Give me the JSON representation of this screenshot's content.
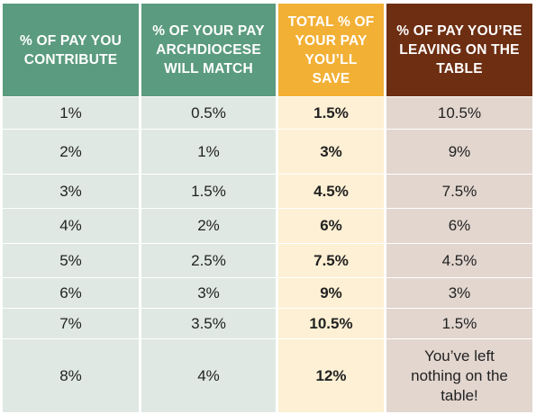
{
  "chart_data": {
    "type": "table",
    "columns": [
      "% OF PAY YOU\nCONTRIBUTE",
      "% OF YOUR PAY\nARCHDIOCESE\nWILL MATCH",
      "TOTAL % OF\nYOUR PAY\nYOU’LL SAVE",
      "% OF PAY YOU’RE\nLEAVING ON THE\nTABLE"
    ],
    "rows": [
      [
        "1%",
        "0.5%",
        "1.5%",
        "10.5%"
      ],
      [
        "2%",
        "1%",
        "3%",
        "9%"
      ],
      [
        "3%",
        "1.5%",
        "4.5%",
        "7.5%"
      ],
      [
        "4%",
        "2%",
        "6%",
        "6%"
      ],
      [
        "5%",
        "2.5%",
        "7.5%",
        "4.5%"
      ],
      [
        "6%",
        "3%",
        "9%",
        "3%"
      ],
      [
        "7%",
        "3.5%",
        "10.5%",
        "1.5%"
      ],
      [
        "8%",
        "4%",
        "12%",
        "You’ve left\nnothing on the\ntable!"
      ]
    ],
    "colors": {
      "header": [
        "#5b9b7f",
        "#5b9b7f",
        "#f2b035",
        "#6d2e12"
      ],
      "body": [
        "#dfe8e2",
        "#dfe8e2",
        "#fdf0d4",
        "#e2d6cf"
      ]
    }
  }
}
